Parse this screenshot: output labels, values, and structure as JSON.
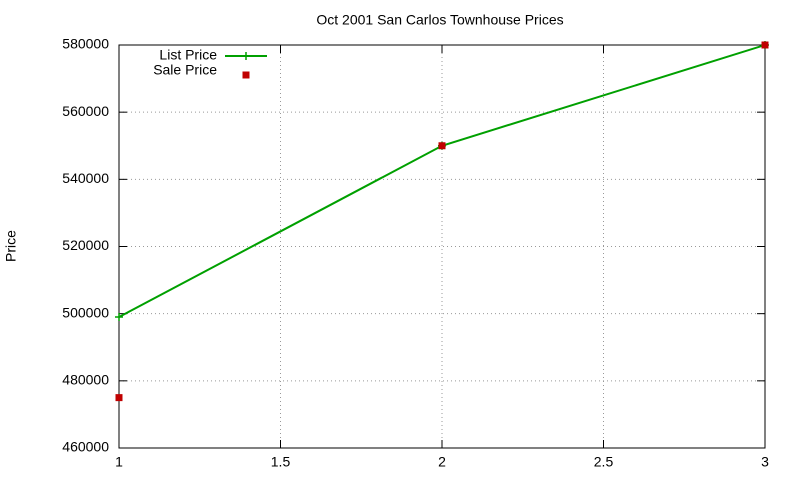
{
  "chart_data": {
    "type": "line",
    "title": "Oct 2001 San Carlos Townhouse Prices",
    "y_label": "Price",
    "x": [
      1,
      2,
      3
    ],
    "series": [
      {
        "name": "List Price",
        "color": "#00a000",
        "line": true,
        "marker": "plus",
        "values": [
          499000,
          550000,
          580000
        ]
      },
      {
        "name": "Sale Price",
        "color": "#c00000",
        "line": false,
        "marker": "square",
        "values": [
          475000,
          550000,
          580000
        ]
      }
    ],
    "xlim": [
      1,
      3
    ],
    "xticks": [
      1,
      1.5,
      2,
      2.5,
      3
    ],
    "ylim": [
      460000,
      580000
    ],
    "yticks": [
      460000,
      480000,
      500000,
      520000,
      540000,
      560000,
      580000
    ],
    "grid": true,
    "legend": "top-left"
  }
}
